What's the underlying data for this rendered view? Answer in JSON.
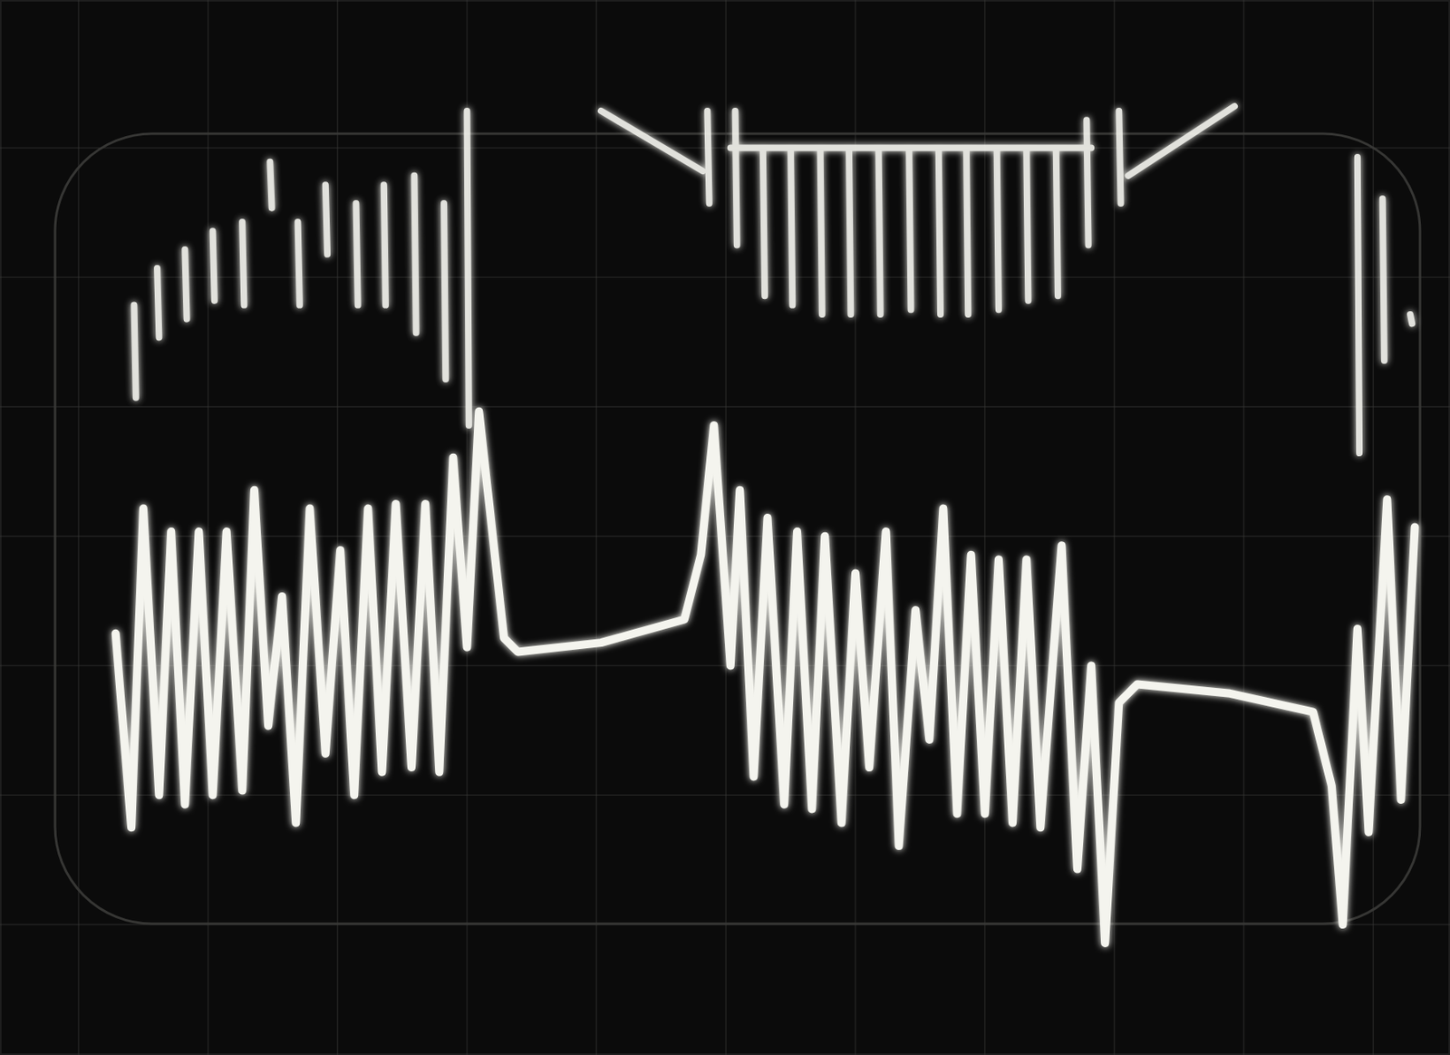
{
  "chart_data": {
    "type": "line",
    "xlim": [
      0,
      1568
    ],
    "ylim": [
      0,
      1141
    ],
    "xticks": [
      85,
      225,
      365,
      505,
      645,
      785,
      925,
      1065,
      1205,
      1345,
      1485
    ],
    "yticks": [
      141,
      281,
      421,
      561,
      701,
      841,
      981
    ],
    "grid": true,
    "tick_labels": false,
    "series": [
      {
        "color": "#f4f4ee",
        "x": [
          125,
          142,
          155,
          172,
          185,
          200,
          215,
          230,
          245,
          262,
          275,
          290,
          305,
          320,
          335,
          352,
          368,
          383,
          398,
          413,
          428,
          445,
          460,
          475,
          490,
          505,
          518,
          545,
          560,
          650,
          740,
          758,
          772,
          790,
          800,
          815,
          830,
          848,
          862,
          878,
          892,
          910,
          925,
          940,
          958,
          972,
          990,
          1005,
          1020,
          1035,
          1050,
          1065,
          1080,
          1095,
          1110,
          1125,
          1148,
          1165,
          1180,
          1195,
          1210,
          1230,
          1330,
          1420,
          1440,
          1452,
          1468,
          1480,
          1500,
          1515,
          1530
        ],
        "values": [
          456,
          246,
          591,
          281,
          566,
          271,
          566,
          281,
          566,
          286,
          611,
          356,
          496,
          251,
          591,
          326,
          546,
          281,
          591,
          306,
          596,
          311,
          596,
          306,
          646,
          441,
          696,
          451,
          436,
          446,
          471,
          541,
          681,
          421,
          611,
          301,
          581,
          271,
          566,
          266,
          561,
          251,
          521,
          311,
          566,
          226,
          481,
          341,
          591,
          261,
          541,
          261,
          536,
          251,
          536,
          246,
          551,
          201,
          421,
          121,
          381,
          401,
          391,
          371,
          291,
          141,
          461,
          241,
          601,
          276,
          571
        ]
      },
      {
        "color": "#f4f4ee",
        "line_style": "spikes",
        "x": [
          145,
          147,
          null,
          170,
          172,
          null,
          200,
          202,
          null,
          230,
          232,
          null,
          262,
          264,
          null,
          292,
          294,
          null,
          322,
          324,
          null,
          352,
          354,
          null,
          385,
          387,
          null,
          415,
          417,
          null,
          448,
          450,
          null,
          480,
          482,
          null,
          505,
          507,
          null,
          650,
          760,
          null,
          765,
          767,
          null,
          790,
          1180,
          null,
          795,
          797,
          null,
          825,
          827,
          null,
          855,
          857,
          null,
          887,
          889,
          null,
          918,
          920,
          null,
          950,
          952,
          null,
          983,
          985,
          null,
          1015,
          1017,
          null,
          1045,
          1047,
          null,
          1078,
          1080,
          null,
          1110,
          1112,
          null,
          1142,
          1144,
          null,
          1175,
          1177,
          null,
          1210,
          1212,
          null,
          1335,
          1220,
          null,
          1468,
          1470,
          null,
          1495,
          1497,
          null,
          1525,
          1527
        ],
        "values": [
          811,
          711,
          null,
          851,
          776,
          null,
          871,
          796,
          null,
          891,
          816,
          null,
          901,
          811,
          null,
          966,
          916,
          null,
          901,
          811,
          null,
          941,
          866,
          null,
          921,
          811,
          null,
          941,
          811,
          null,
          951,
          781,
          null,
          921,
          731,
          null,
          1021,
          681,
          null,
          1021,
          956,
          null,
          1021,
          921,
          null,
          981,
          981,
          null,
          1021,
          876,
          null,
          981,
          821,
          null,
          981,
          811,
          null,
          981,
          801,
          null,
          981,
          801,
          null,
          981,
          801,
          null,
          981,
          806,
          null,
          981,
          801,
          null,
          981,
          801,
          null,
          981,
          806,
          null,
          981,
          816,
          null,
          981,
          821,
          null,
          1011,
          876,
          null,
          1021,
          921,
          null,
          1026,
          951,
          null,
          971,
          651,
          null,
          926,
          751,
          null,
          801,
          791
        ]
      }
    ]
  }
}
